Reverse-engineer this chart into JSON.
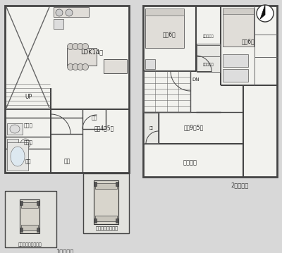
{
  "bg_color": "#d8d8d8",
  "wall_color": "#444444",
  "room_bg": "#f2f2ee",
  "light_bg": "#e8e8e4",
  "title1": "1階平面図",
  "title2": "2階平面図",
  "lbl_LDK": "LDK14畴",
  "lbl_washitsu": "和室4．5畴",
  "lbl_oshiire": "押入",
  "lbl_UP": "UP",
  "lbl_toilet": "トイレ",
  "lbl_wash": "洗面所",
  "lbl_bath": "浴室",
  "lbl_genkan": "玄関",
  "lbl_g1": "母ガレージスペース",
  "lbl_g2": "ガレージスペース",
  "lbl_y1": "洋室6畴",
  "lbl_y2": "洋室6畴",
  "lbl_y3": "洋室9．5畴",
  "lbl_cl1": "クロゼット",
  "lbl_cl2": "クロゼット",
  "lbl_DN": "DN",
  "lbl_veranda": "ベランダ"
}
